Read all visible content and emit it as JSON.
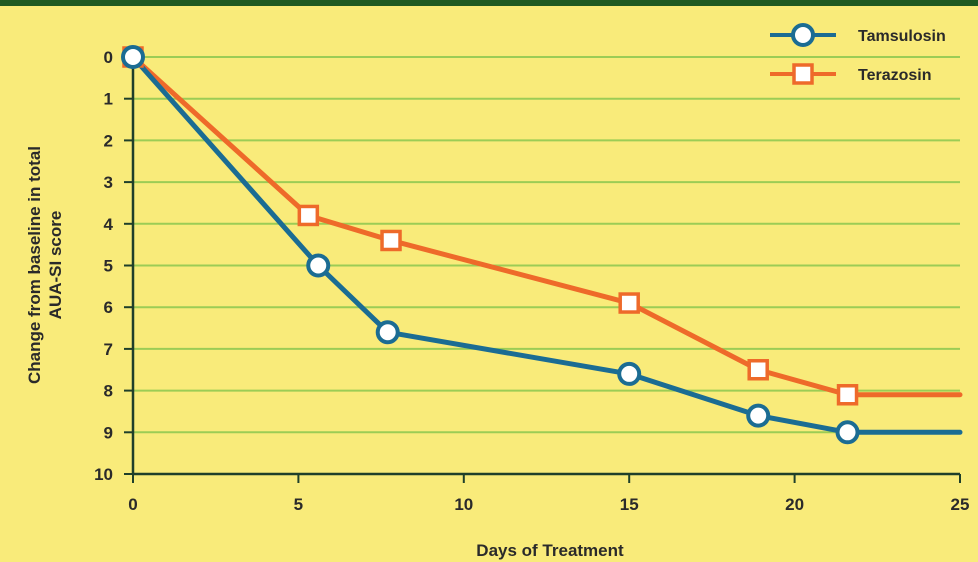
{
  "chart_data": {
    "type": "line",
    "xlabel": "Days of Treatment",
    "ylabel_lines": [
      "Change from baseline in total",
      "AUA-SI score"
    ],
    "xlim": [
      0,
      25
    ],
    "ylim": [
      0,
      10
    ],
    "y_inverted": true,
    "x_ticks": [
      0,
      5,
      10,
      15,
      20,
      25
    ],
    "y_ticks": [
      0,
      1,
      2,
      3,
      4,
      5,
      6,
      7,
      8,
      9,
      10
    ],
    "grid": "horizontal",
    "legend_position": "top-right",
    "series": [
      {
        "name": "Tamsulosin",
        "color": "#1b6c93",
        "marker": "circle",
        "points": [
          [
            0,
            0
          ],
          [
            5.6,
            5.0
          ],
          [
            7.7,
            6.6
          ],
          [
            15,
            7.6
          ],
          [
            18.9,
            8.6
          ],
          [
            21.6,
            9.0
          ]
        ],
        "line_extends_to_x": 25,
        "line_end_value": 9.0
      },
      {
        "name": "Terazosin",
        "color": "#ee6a2a",
        "marker": "square",
        "points": [
          [
            0,
            0
          ],
          [
            5.3,
            3.8
          ],
          [
            7.8,
            4.4
          ],
          [
            15,
            5.9
          ],
          [
            18.9,
            7.5
          ],
          [
            21.6,
            8.1
          ]
        ],
        "line_extends_to_x": 25,
        "line_end_value": 8.1
      }
    ]
  },
  "colors": {
    "background": "#f9eb7a",
    "gridline": "#9ccc55",
    "axis": "#1f3f2a",
    "top_band": "#1f5a22"
  }
}
